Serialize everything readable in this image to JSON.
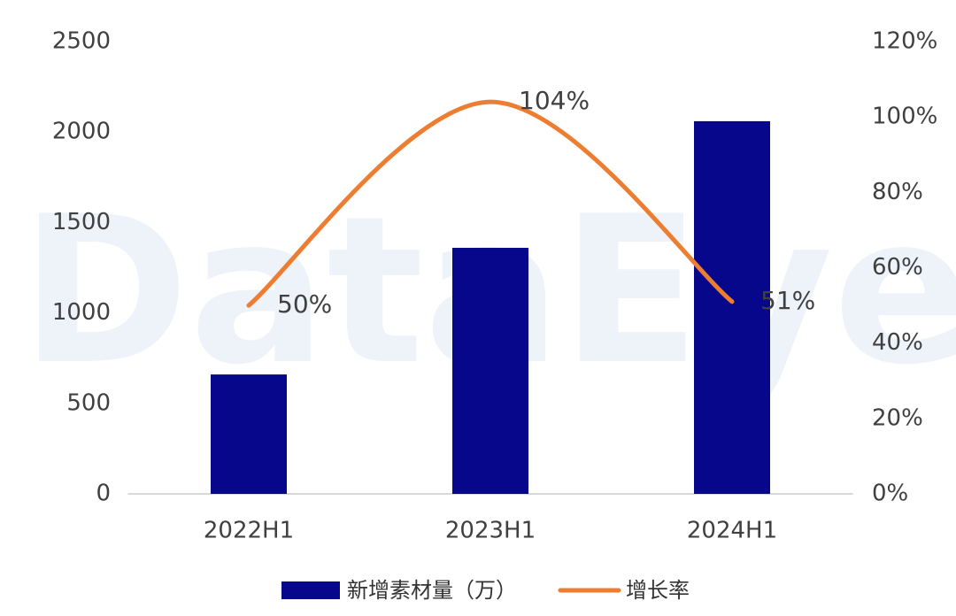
{
  "chart_data": {
    "type": "bar-line",
    "watermark": "DataEye",
    "categories": [
      "2022H1",
      "2023H1",
      "2024H1"
    ],
    "series": [
      {
        "name": "新增素材量（万）",
        "type": "bar",
        "color": "#07078c",
        "values": [
          660,
          1360,
          2060
        ]
      },
      {
        "name": "增长率",
        "type": "line",
        "axis": "y2",
        "color": "#ed7d31",
        "values": [
          50,
          104,
          51
        ],
        "value_labels": [
          "50%",
          "104%",
          "51%"
        ]
      }
    ],
    "ylim": [
      0,
      2500
    ],
    "yticks": [
      0,
      500,
      1000,
      1500,
      2000,
      2500
    ],
    "y2lim": [
      0,
      120
    ],
    "y2ticks": [
      {
        "value": 0,
        "label": "0%"
      },
      {
        "value": 20,
        "label": "20%"
      },
      {
        "value": 40,
        "label": "40%"
      },
      {
        "value": 60,
        "label": "60%"
      },
      {
        "value": 80,
        "label": "80%"
      },
      {
        "value": 100,
        "label": "100%"
      },
      {
        "value": 120,
        "label": "120%"
      }
    ],
    "legend": "bottom",
    "grid": false
  }
}
